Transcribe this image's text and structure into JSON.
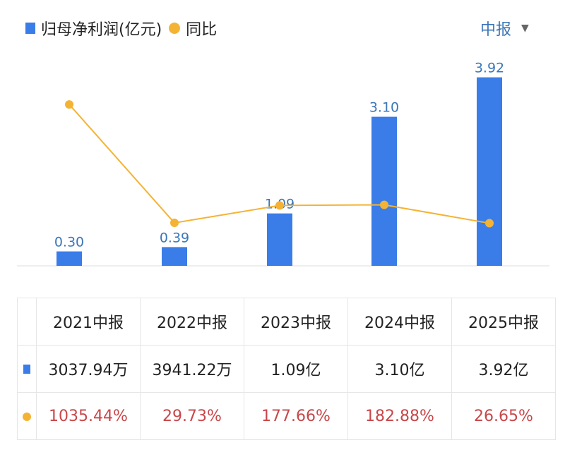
{
  "legend": {
    "series1": "归母净利润(亿元)",
    "series2": "同比"
  },
  "period_selector": {
    "label": "中报",
    "icon": "triangle-down-icon"
  },
  "colors": {
    "bar": "#3a7de8",
    "line": "#f5b333",
    "yoy_text": "#c8474a",
    "label": "#3b76b8"
  },
  "chart_data": {
    "type": "bar",
    "categories": [
      "2021中报",
      "2022中报",
      "2023中报",
      "2024中报",
      "2025中报"
    ],
    "series": [
      {
        "name": "归母净利润(亿元)",
        "type": "bar",
        "values": [
          0.3,
          0.39,
          1.09,
          3.1,
          3.92
        ],
        "labels": [
          "0.30",
          "0.39",
          "1.09",
          "3.10",
          "3.92"
        ]
      },
      {
        "name": "同比",
        "type": "line",
        "unit": "%",
        "values": [
          1035.44,
          29.73,
          177.66,
          182.88,
          26.65
        ]
      }
    ],
    "grid": false,
    "legend": "top-left"
  },
  "table": {
    "headers": [
      "2021中报",
      "2022中报",
      "2023中报",
      "2024中报",
      "2025中报"
    ],
    "profit": [
      "3037.94万",
      "3941.22万",
      "1.09亿",
      "3.10亿",
      "3.92亿"
    ],
    "yoy": [
      "1035.44%",
      "29.73%",
      "177.66%",
      "182.88%",
      "26.65%"
    ]
  }
}
